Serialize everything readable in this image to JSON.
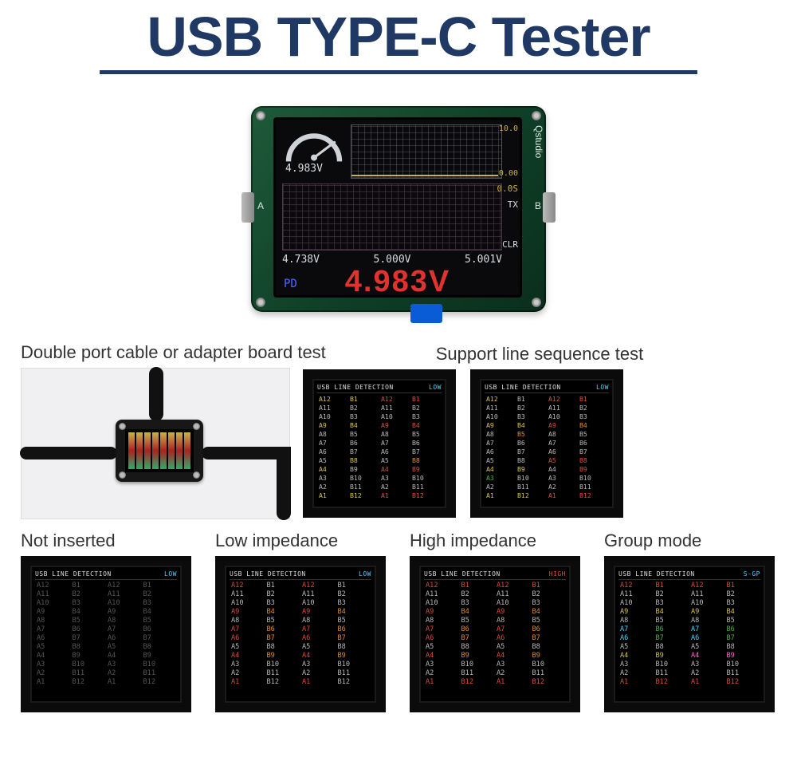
{
  "title": "USB TYPE-C Tester",
  "title_color": "#1f3864",
  "hero": {
    "brand_label": "Qstudio",
    "port_a_label": "A",
    "port_b_label": "B",
    "gauge_value": "4.983V",
    "scale_top": "10.0",
    "scale_bot": "0.00",
    "time_label": "0.0S",
    "tx_label": "TX",
    "clr_label": "CLR",
    "v_left": "4.738V",
    "v_mid": "5.000V",
    "v_right": "5.001V",
    "pd_label": "PD",
    "big_value": "4.983V"
  },
  "captions": {
    "double_port": "Double port cable or adapter board test",
    "support_line": "Support line sequence test",
    "not_inserted": "Not inserted",
    "low_imp": "Low impedance",
    "high_imp": "High impedance",
    "group_mode": "Group mode"
  },
  "pin_header": {
    "title": "USB LINE DETECTION",
    "low": "LOW",
    "high": "HIGH",
    "sgp": "S-GP"
  },
  "colors": {
    "gray": "#b7b7b7",
    "yellow": "#d9c24a",
    "green": "#4caf50",
    "red": "#d84c3b",
    "orange": "#e08a2c",
    "cyan": "#4dd2ff",
    "magenta": "#ff66cc",
    "white": "#e8e8e8",
    "muted": "#555555"
  },
  "pins_a": [
    "A12",
    "A11",
    "A10",
    "A9",
    "A8",
    "A7",
    "A6",
    "A5",
    "A4",
    "A3",
    "A2",
    "A1"
  ],
  "pins_b": [
    "B1",
    "B2",
    "B3",
    "B4",
    "B5",
    "B6",
    "B7",
    "B8",
    "B9",
    "B10",
    "B11",
    "B12"
  ],
  "screens": {
    "support1": {
      "header_mode": "LOW",
      "colA": [
        "yellow",
        "gray",
        "gray",
        "yellow",
        "gray",
        "gray",
        "gray",
        "gray",
        "yellow",
        "gray",
        "gray",
        "yellow"
      ],
      "colB": [
        "yellow",
        "gray",
        "gray",
        "yellow",
        "gray",
        "gray",
        "gray",
        "yellow",
        "gray",
        "gray",
        "gray",
        "yellow"
      ],
      "colC": [
        "red",
        "gray",
        "gray",
        "red",
        "gray",
        "gray",
        "gray",
        "gray",
        "red",
        "gray",
        "gray",
        "red"
      ],
      "colD": [
        "red",
        "gray",
        "gray",
        "red",
        "gray",
        "gray",
        "gray",
        "orange",
        "red",
        "gray",
        "gray",
        "red"
      ]
    },
    "support2": {
      "header_mode": "LOW",
      "colA": [
        "yellow",
        "gray",
        "gray",
        "yellow",
        "gray",
        "gray",
        "gray",
        "gray",
        "yellow",
        "green",
        "gray",
        "yellow"
      ],
      "colB": [
        "gray",
        "gray",
        "gray",
        "yellow",
        "orange",
        "gray",
        "gray",
        "gray",
        "yellow",
        "gray",
        "gray",
        "yellow"
      ],
      "colC": [
        "red",
        "gray",
        "gray",
        "red",
        "gray",
        "gray",
        "gray",
        "red",
        "gray",
        "gray",
        "gray",
        "red"
      ],
      "colD": [
        "red",
        "gray",
        "gray",
        "orange",
        "gray",
        "gray",
        "gray",
        "red",
        "red",
        "gray",
        "gray",
        "red"
      ]
    },
    "not_inserted": {
      "header_mode": "LOW",
      "colA": [
        "muted",
        "muted",
        "muted",
        "muted",
        "muted",
        "muted",
        "muted",
        "muted",
        "muted",
        "muted",
        "muted",
        "muted"
      ],
      "colB": [
        "muted",
        "muted",
        "muted",
        "muted",
        "muted",
        "muted",
        "muted",
        "muted",
        "muted",
        "muted",
        "muted",
        "muted"
      ],
      "colC": [
        "muted",
        "muted",
        "muted",
        "muted",
        "muted",
        "muted",
        "muted",
        "muted",
        "muted",
        "muted",
        "muted",
        "muted"
      ],
      "colD": [
        "muted",
        "muted",
        "muted",
        "muted",
        "muted",
        "muted",
        "muted",
        "muted",
        "muted",
        "muted",
        "muted",
        "muted"
      ]
    },
    "low_imp": {
      "header_mode": "LOW",
      "colA": [
        "red",
        "gray",
        "gray",
        "red",
        "gray",
        "red",
        "red",
        "gray",
        "red",
        "gray",
        "gray",
        "red"
      ],
      "colB": [
        "gray",
        "gray",
        "gray",
        "orange",
        "gray",
        "orange",
        "orange",
        "gray",
        "orange",
        "gray",
        "gray",
        "gray"
      ],
      "colC": [
        "red",
        "gray",
        "gray",
        "red",
        "gray",
        "red",
        "red",
        "gray",
        "red",
        "gray",
        "gray",
        "red"
      ],
      "colD": [
        "gray",
        "gray",
        "gray",
        "orange",
        "gray",
        "orange",
        "orange",
        "gray",
        "orange",
        "gray",
        "gray",
        "gray"
      ]
    },
    "high_imp": {
      "header_mode": "HIGH",
      "colA": [
        "red",
        "gray",
        "gray",
        "red",
        "gray",
        "red",
        "red",
        "gray",
        "red",
        "gray",
        "gray",
        "red"
      ],
      "colB": [
        "red",
        "gray",
        "gray",
        "orange",
        "gray",
        "orange",
        "orange",
        "gray",
        "orange",
        "gray",
        "gray",
        "red"
      ],
      "colC": [
        "red",
        "gray",
        "gray",
        "red",
        "gray",
        "red",
        "red",
        "gray",
        "red",
        "gray",
        "gray",
        "red"
      ],
      "colD": [
        "red",
        "gray",
        "gray",
        "orange",
        "gray",
        "orange",
        "orange",
        "gray",
        "orange",
        "gray",
        "gray",
        "red"
      ]
    },
    "group_mode": {
      "header_mode": "SGP",
      "colA": [
        "red",
        "gray",
        "gray",
        "yellow",
        "gray",
        "cyan",
        "cyan",
        "gray",
        "yellow",
        "gray",
        "gray",
        "red"
      ],
      "colB": [
        "red",
        "gray",
        "gray",
        "yellow",
        "gray",
        "green",
        "green",
        "gray",
        "yellow",
        "gray",
        "gray",
        "red"
      ],
      "colC": [
        "red",
        "gray",
        "gray",
        "yellow",
        "gray",
        "cyan",
        "cyan",
        "gray",
        "magenta",
        "gray",
        "gray",
        "red"
      ],
      "colD": [
        "red",
        "gray",
        "gray",
        "yellow",
        "gray",
        "green",
        "green",
        "gray",
        "magenta",
        "gray",
        "gray",
        "red"
      ]
    }
  }
}
